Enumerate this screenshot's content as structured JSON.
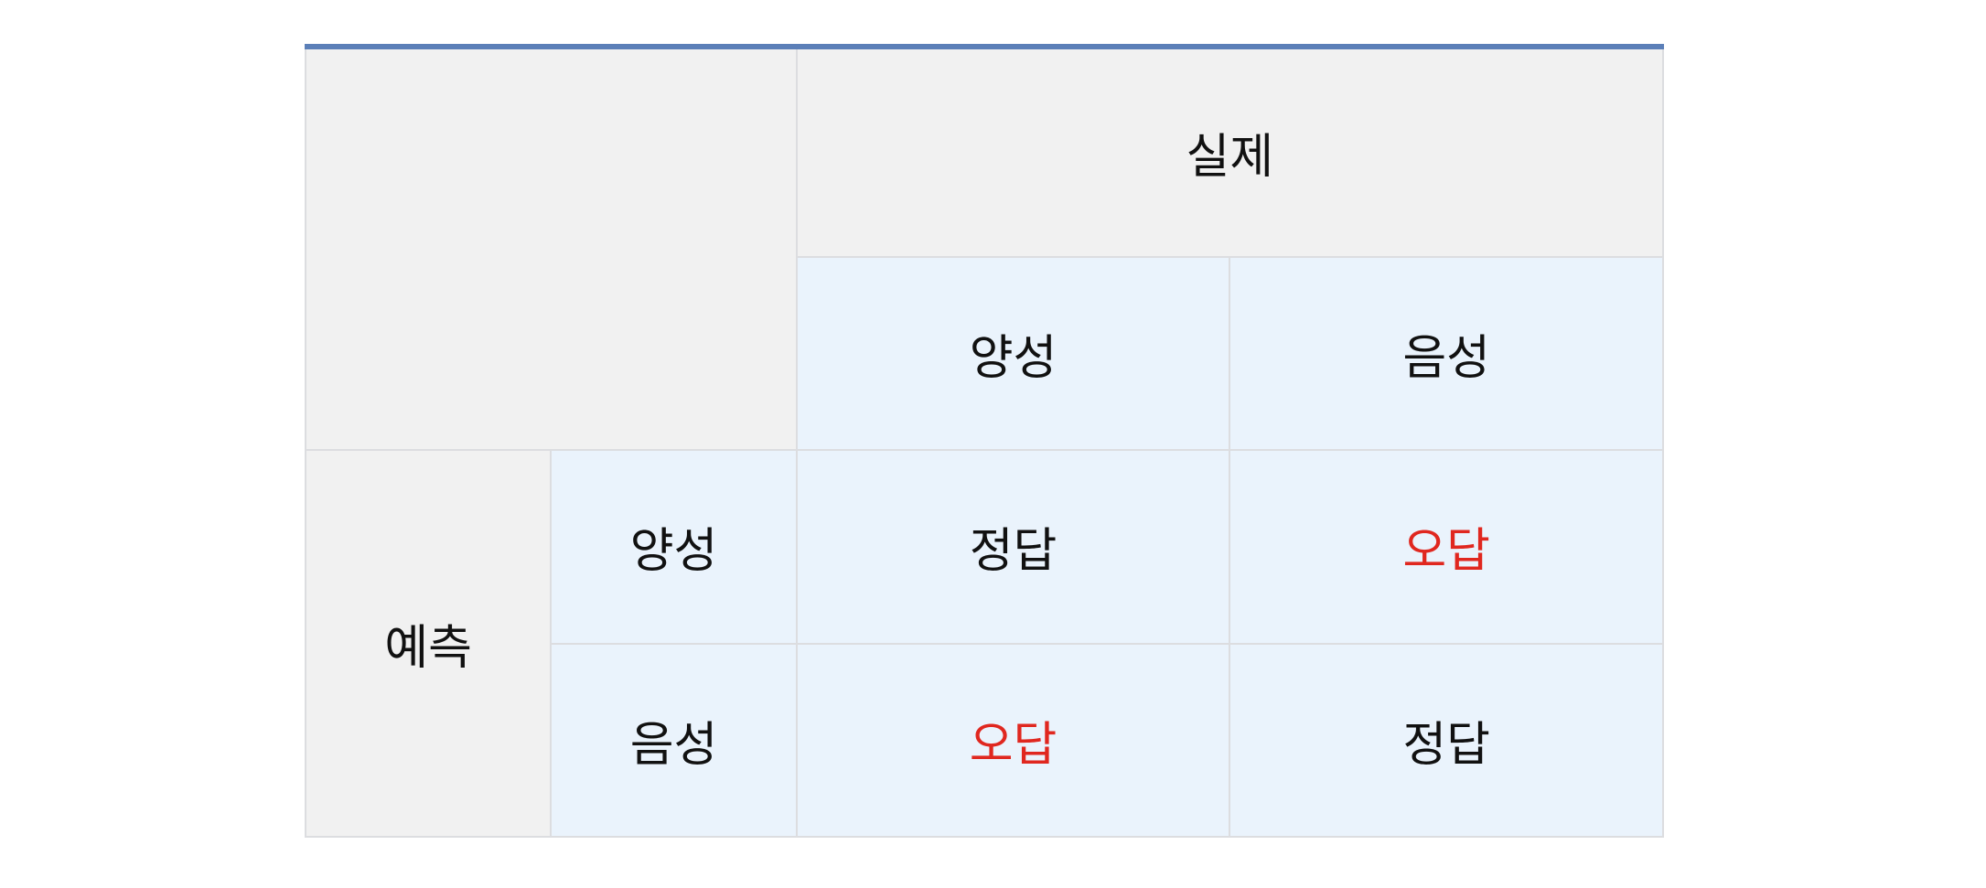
{
  "table": {
    "header": {
      "actual_label": "실제",
      "columns": [
        "양성",
        "음성"
      ]
    },
    "row_group_label": "예측",
    "rows": [
      {
        "label": "양성",
        "cells": [
          {
            "text": "정답",
            "color": "#111111"
          },
          {
            "text": "오답",
            "color": "#e0271f"
          }
        ]
      },
      {
        "label": "음성",
        "cells": [
          {
            "text": "오답",
            "color": "#e0271f"
          },
          {
            "text": "정답",
            "color": "#111111"
          }
        ]
      }
    ]
  },
  "colors": {
    "accent_top_border": "#5b7fb8",
    "header_gray": "#f1f1f1",
    "cell_blue": "#eaf3fc",
    "error_red": "#e0271f"
  }
}
